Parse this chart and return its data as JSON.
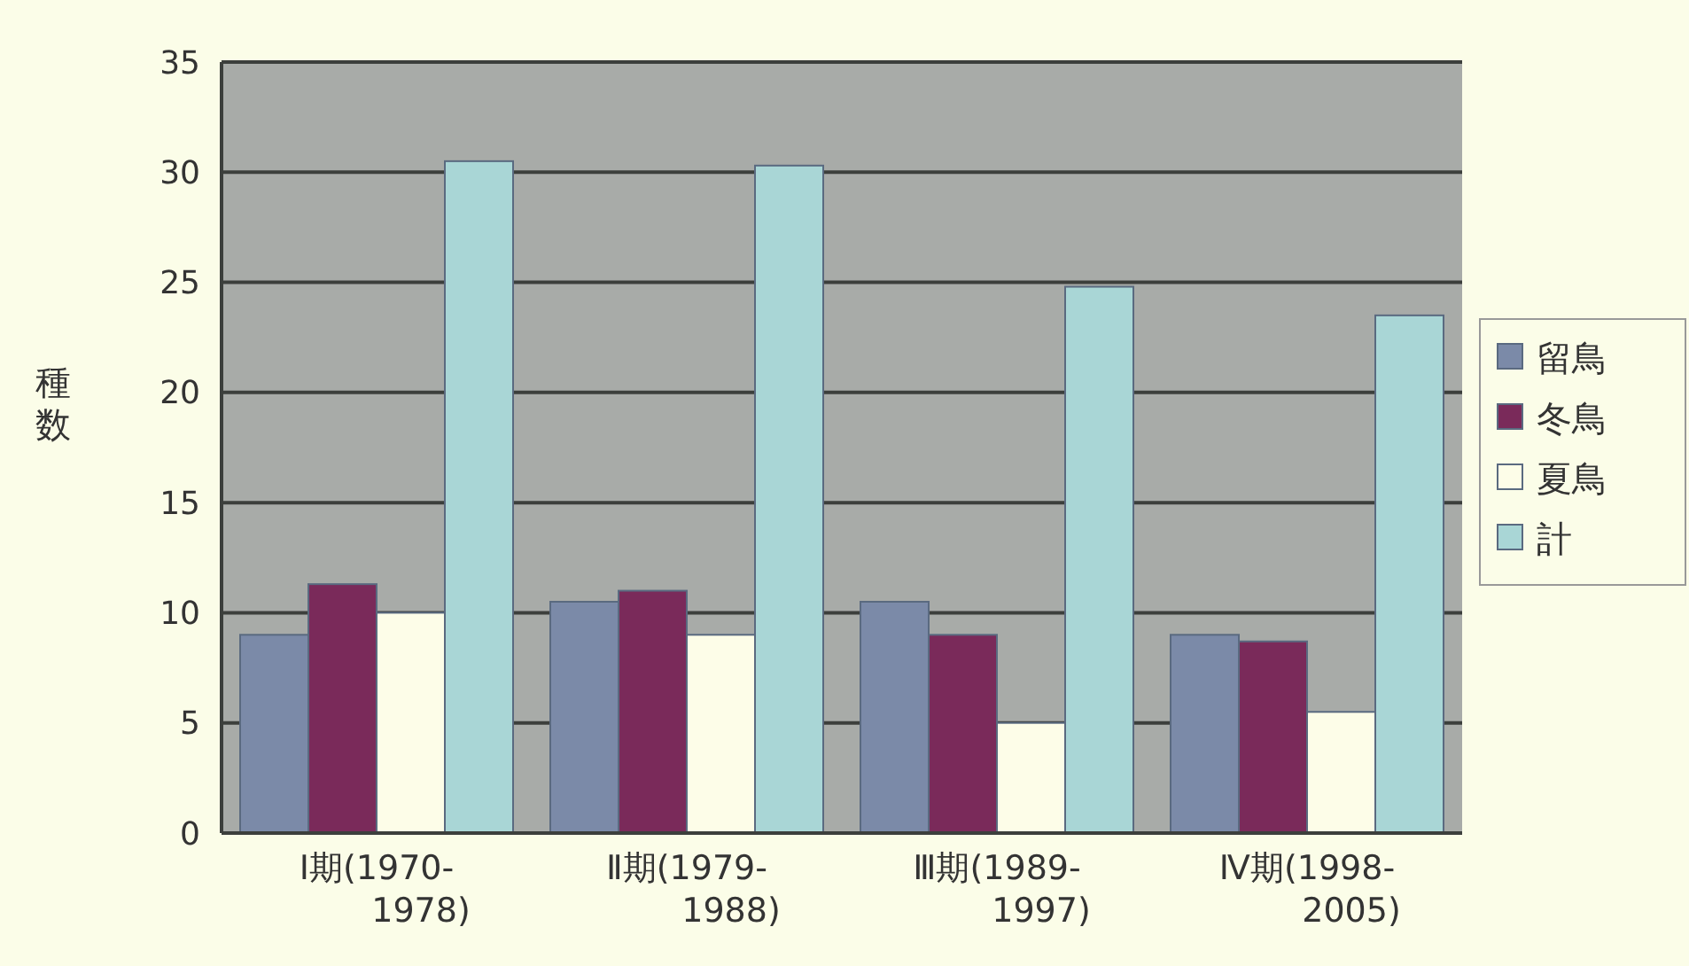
{
  "chart_data": {
    "type": "bar",
    "ylabel": "種数",
    "categories": [
      "Ⅰ期(1970-1978)",
      "Ⅱ期(1979-1988)",
      "Ⅲ期(1989-1997)",
      "Ⅳ期(1998-2005)"
    ],
    "series": [
      {
        "name": "留鳥",
        "color": "#7b8aa8",
        "values": [
          9,
          10.5,
          10.5,
          9
        ]
      },
      {
        "name": "冬鳥",
        "color": "#7a2a5a",
        "values": [
          11.3,
          11,
          9,
          8.7
        ]
      },
      {
        "name": "夏鳥",
        "color": "#fdfde8",
        "values": [
          10,
          9,
          5,
          5.5
        ]
      },
      {
        "name": "計",
        "color": "#a9d6d6",
        "values": [
          30.5,
          30.3,
          24.8,
          23.5
        ]
      }
    ],
    "ylim": [
      0,
      35
    ],
    "yticks": [
      0,
      5,
      10,
      15,
      20,
      25,
      30,
      35
    ],
    "grid": "y",
    "legend": "right"
  }
}
